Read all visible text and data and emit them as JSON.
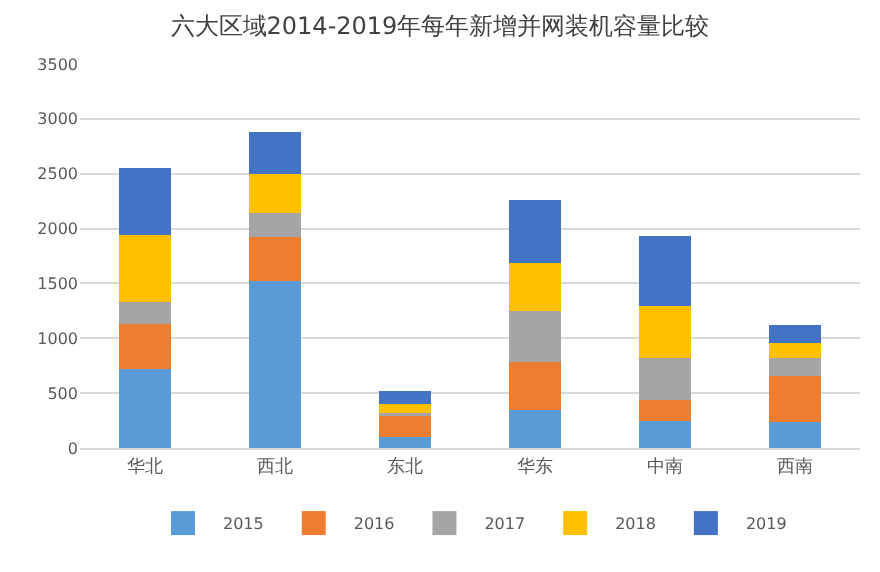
{
  "chart_data": {
    "type": "bar",
    "title": "六大区域2014-2019年每年新增并网装机容量比较",
    "stacked": true,
    "categories": [
      "华北",
      "西北",
      "东北",
      "华东",
      "中南",
      "西南"
    ],
    "series": [
      {
        "name": "2015",
        "color": "#5b9bd5",
        "values": [
          720,
          1520,
          100,
          350,
          250,
          240
        ]
      },
      {
        "name": "2016",
        "color": "#ed7d31",
        "values": [
          410,
          400,
          190,
          430,
          190,
          420
        ]
      },
      {
        "name": "2017",
        "color": "#a5a5a5",
        "values": [
          200,
          220,
          30,
          470,
          380,
          160
        ]
      },
      {
        "name": "2018",
        "color": "#ffc000",
        "values": [
          610,
          360,
          80,
          440,
          470,
          140
        ]
      },
      {
        "name": "2019",
        "color": "#4472c4",
        "values": [
          610,
          380,
          120,
          570,
          640,
          160
        ]
      }
    ],
    "ylim": [
      0,
      3500
    ],
    "yticks": [
      0,
      500,
      1000,
      1500,
      2000,
      2500,
      3000,
      3500
    ],
    "grid": "y",
    "legend": "bottom"
  }
}
